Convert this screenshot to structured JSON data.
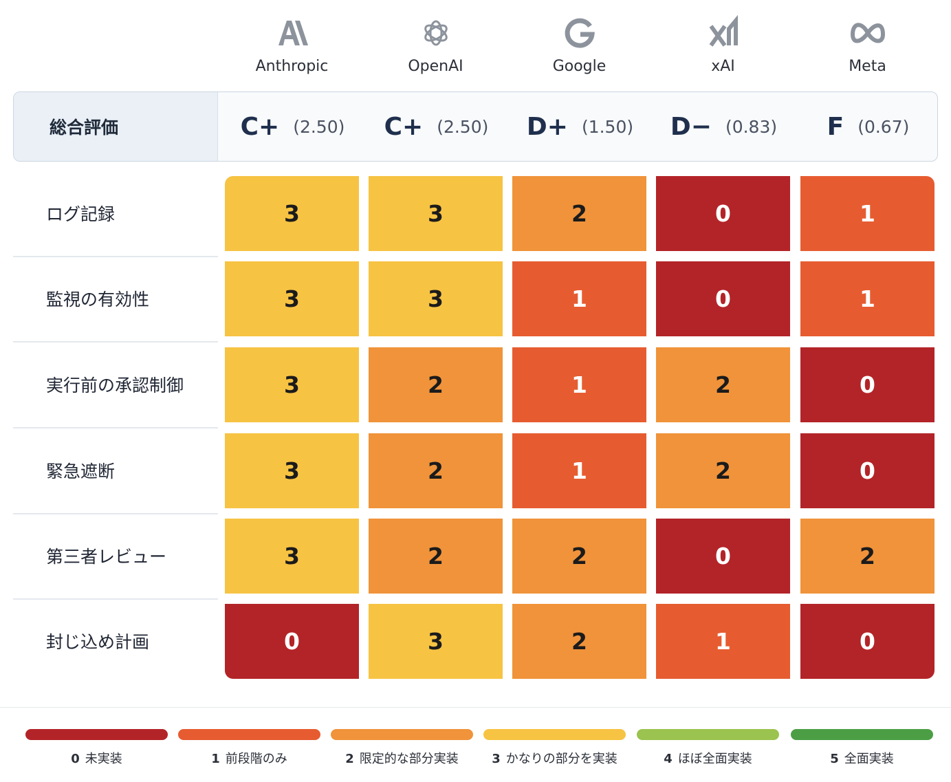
{
  "companies": [
    {
      "name": "Anthropic",
      "icon": "anthropic-logo-icon"
    },
    {
      "name": "OpenAI",
      "icon": "openai-logo-icon"
    },
    {
      "name": "Google",
      "icon": "google-logo-icon"
    },
    {
      "name": "xAI",
      "icon": "xai-logo-icon"
    },
    {
      "name": "Meta",
      "icon": "meta-logo-icon"
    }
  ],
  "overall": {
    "label": "総合評価",
    "grades": [
      {
        "letter": "C+",
        "score": "(2.50)"
      },
      {
        "letter": "C+",
        "score": "(2.50)"
      },
      {
        "letter": "D+",
        "score": "(1.50)"
      },
      {
        "letter": "D−",
        "score": "(0.83)"
      },
      {
        "letter": "F",
        "score": "(0.67)"
      }
    ]
  },
  "chart_data": {
    "type": "heatmap",
    "columns": [
      "Anthropic",
      "OpenAI",
      "Google",
      "xAI",
      "Meta"
    ],
    "rows": [
      "ログ記録",
      "監視の有効性",
      "実行前の承認制御",
      "緊急遮断",
      "第三者レビュー",
      "封じ込め計画"
    ],
    "values": [
      [
        3,
        3,
        2,
        0,
        1
      ],
      [
        3,
        3,
        1,
        0,
        1
      ],
      [
        3,
        2,
        1,
        2,
        0
      ],
      [
        3,
        2,
        1,
        2,
        0
      ],
      [
        3,
        2,
        2,
        0,
        2
      ],
      [
        0,
        3,
        2,
        1,
        0
      ]
    ],
    "scale": [
      {
        "value": 0,
        "label": "未実装",
        "color": "#b32428"
      },
      {
        "value": 1,
        "label": "前段階のみ",
        "color": "#e65c30"
      },
      {
        "value": 2,
        "label": "限定的な部分実装",
        "color": "#f0933a"
      },
      {
        "value": 3,
        "label": "かなりの部分を実装",
        "color": "#f7c343"
      },
      {
        "value": 4,
        "label": "ほぼ全面実装",
        "color": "#9bc34f"
      },
      {
        "value": 5,
        "label": "全面実装",
        "color": "#4c9e45"
      }
    ]
  }
}
